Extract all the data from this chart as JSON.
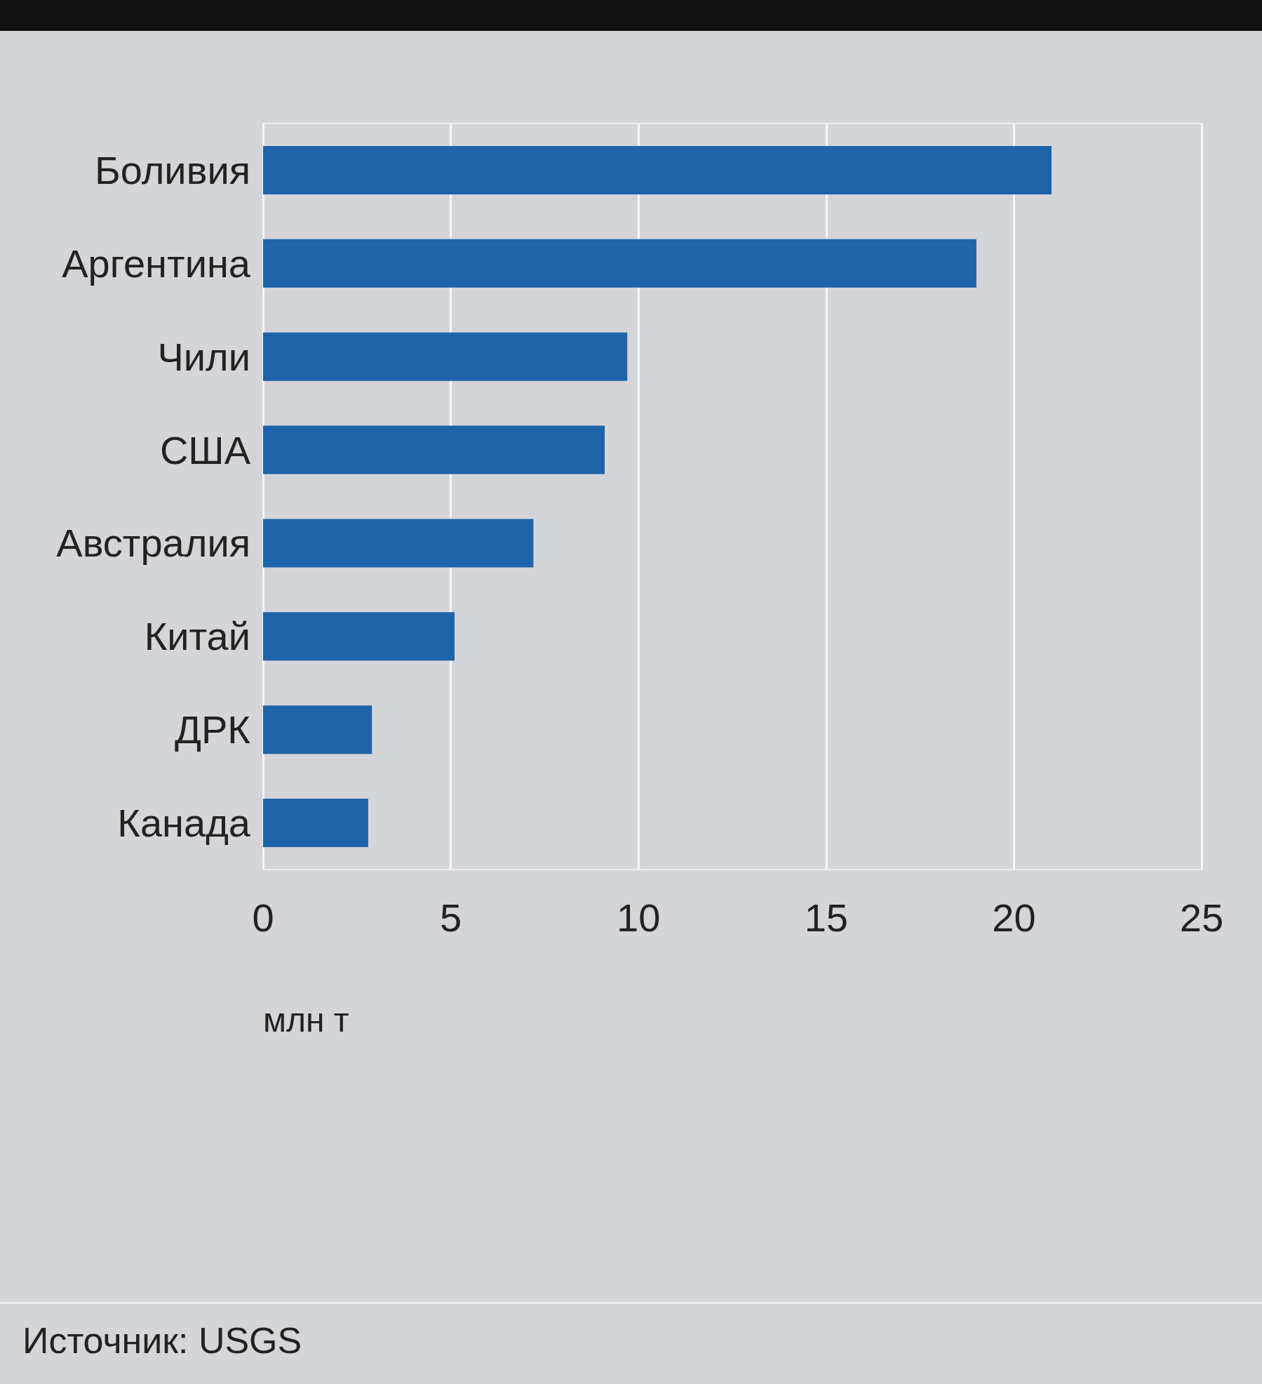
{
  "chart_data": {
    "type": "bar",
    "orientation": "horizontal",
    "xlabel": "млн т",
    "categories": [
      "Боливия",
      "Аргентина",
      "Чили",
      "США",
      "Австралия",
      "Китай",
      "ДРК",
      "Канада"
    ],
    "values": [
      21,
      19,
      9.7,
      9.1,
      7.2,
      5.1,
      2.9,
      2.8
    ],
    "color": "#1f63a8",
    "xlim": [
      0,
      25
    ],
    "xticks": [
      0,
      5,
      10,
      15,
      20,
      25
    ],
    "grid": "x",
    "annotations": [
      "Источник: USGS"
    ]
  }
}
